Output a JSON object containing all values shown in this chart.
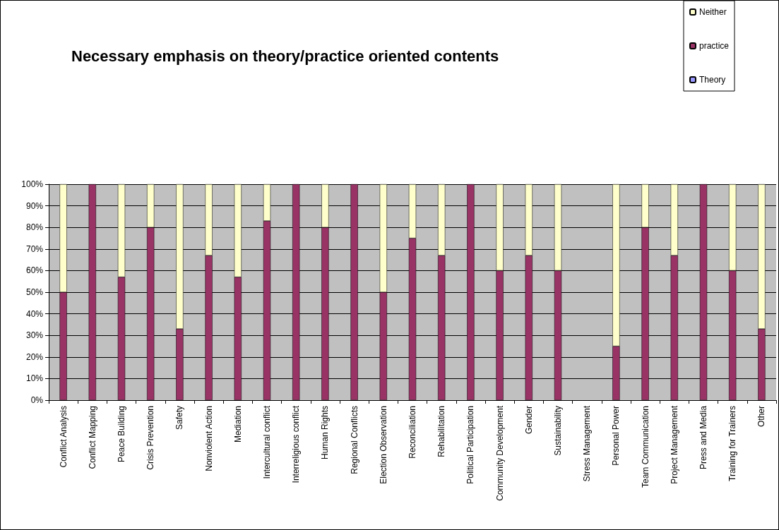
{
  "chart_data": {
    "type": "bar",
    "title": "Necessary emphasis on theory/practice oriented contents",
    "categories": [
      "Conflict Analysis",
      "Conflict Mapping",
      "Peace Building",
      "Crisis Prevention",
      "Safety",
      "Nonviolent Action",
      "Mediation",
      "Intercultural conflict",
      "Interreligious conflict",
      "Human Rights",
      "Regional Conflicts",
      "Election Observation",
      "Reconciliation",
      "Rehabilitation",
      "Political Participation",
      "Community Development",
      "Gender",
      "Sustainability",
      "Stress Management",
      "Personal Power",
      "Team Communication",
      "Project Management",
      "Press and Media",
      "Training for Trainers",
      "Other"
    ],
    "stacked": true,
    "series": [
      {
        "name": "Theory",
        "color": "#9999ff",
        "values": [
          0,
          0,
          0,
          0,
          0,
          0,
          0,
          0,
          0,
          0,
          0,
          0,
          0,
          0,
          0,
          0,
          0,
          0,
          null,
          0,
          0,
          0,
          0,
          0,
          0
        ]
      },
      {
        "name": "practice",
        "color": "#993366",
        "values": [
          50,
          100,
          57,
          80,
          33,
          67,
          57,
          83,
          100,
          80,
          100,
          50,
          75,
          67,
          100,
          60,
          67,
          60,
          null,
          25,
          80,
          67,
          100,
          60,
          33
        ]
      },
      {
        "name": "Neither",
        "color": "#ffffcc",
        "values": [
          50,
          0,
          43,
          20,
          67,
          33,
          43,
          17,
          0,
          20,
          0,
          50,
          25,
          33,
          0,
          40,
          33,
          40,
          null,
          75,
          20,
          33,
          0,
          40,
          67
        ]
      }
    ],
    "ylim": [
      0,
      100
    ],
    "yticks": [
      {
        "value": 0,
        "label": "0%"
      },
      {
        "value": 10,
        "label": "10%"
      },
      {
        "value": 20,
        "label": "20%"
      },
      {
        "value": 30,
        "label": "30%"
      },
      {
        "value": 40,
        "label": "40%"
      },
      {
        "value": 50,
        "label": "50%"
      },
      {
        "value": 60,
        "label": "60%"
      },
      {
        "value": 70,
        "label": "70%"
      },
      {
        "value": 80,
        "label": "80%"
      },
      {
        "value": 90,
        "label": "90%"
      },
      {
        "value": 100,
        "label": "100%"
      }
    ],
    "grid": "y",
    "legend": "top right"
  }
}
